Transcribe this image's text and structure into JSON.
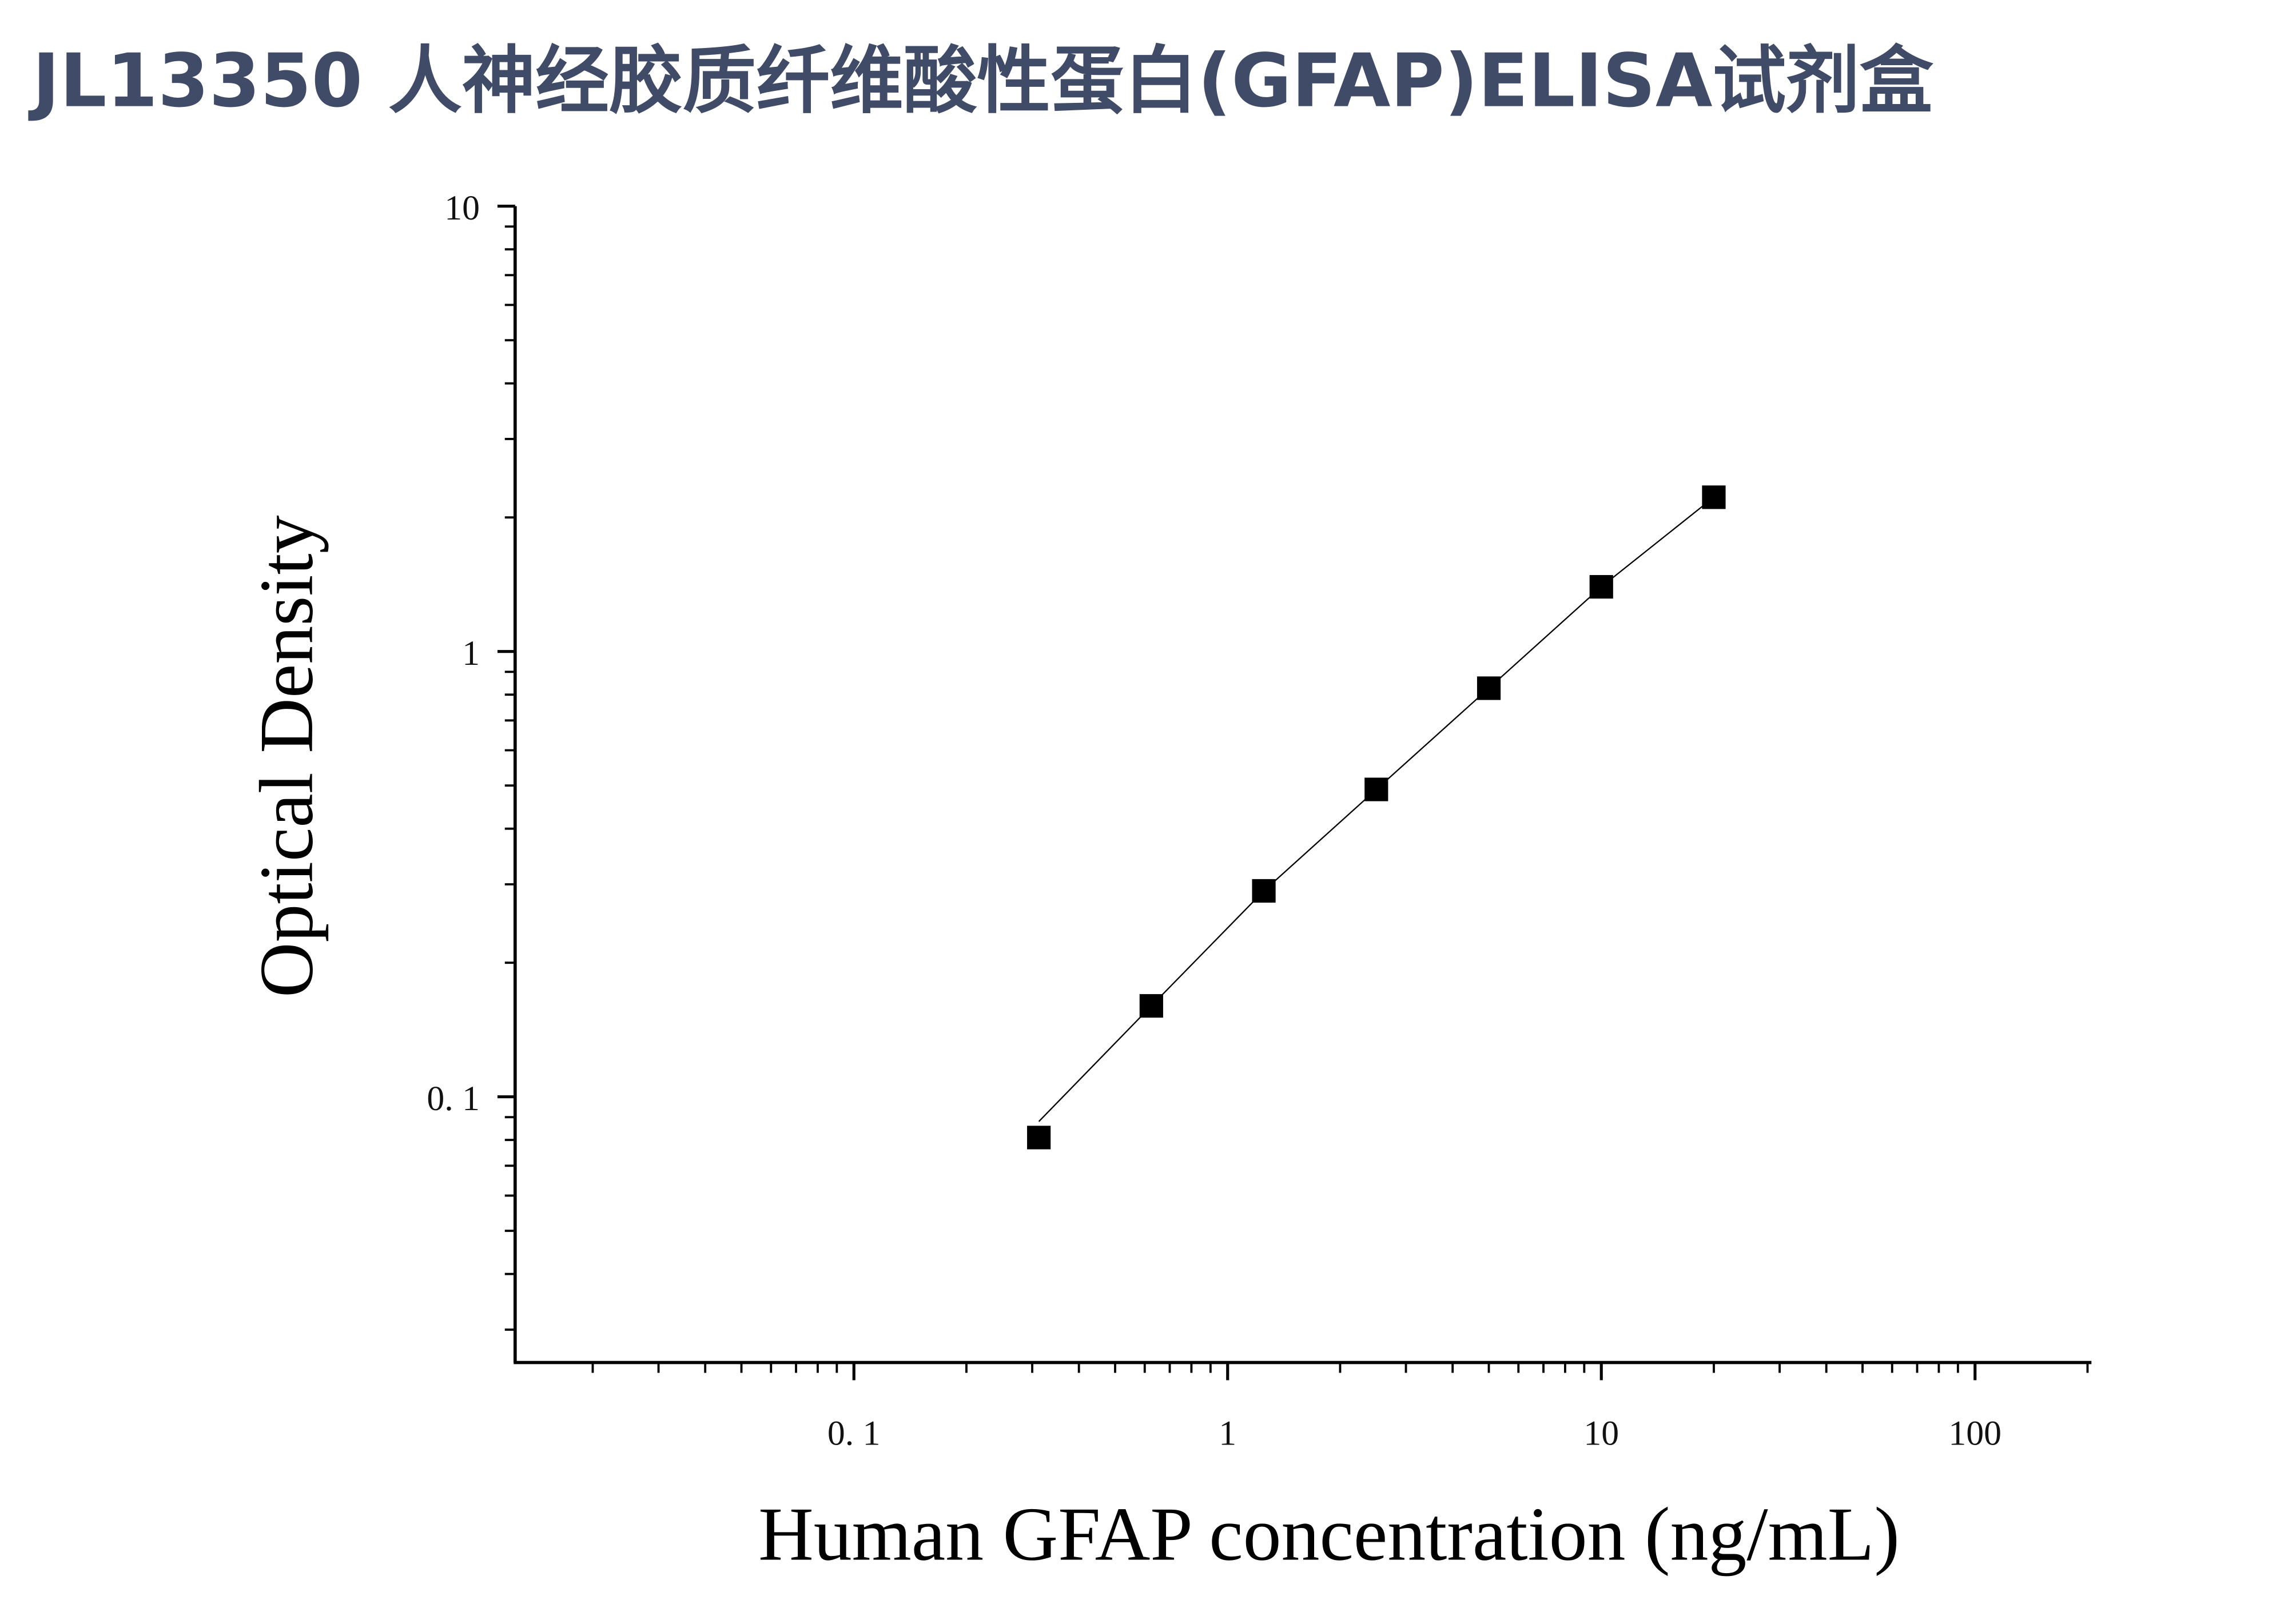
{
  "title": "JL13350 人神经胶质纤维酸性蛋白(GFAP)ELISA试剂盒",
  "colors": {
    "title": "#3f4b67",
    "marks": "#000000"
  },
  "chart_data": {
    "type": "scatter",
    "title": "JL13350 人神经胶质纤维酸性蛋白(GFAP)ELISA试剂盒",
    "xlabel": "Human GFAP concentration (ng/mL)",
    "ylabel": "Optical Density",
    "xscale": "log",
    "yscale": "log",
    "xlim": [
      0.0124,
      203
    ],
    "ylim": [
      0.0255,
      10
    ],
    "xticks": [
      0.1,
      1,
      10,
      100
    ],
    "xtick_labels": [
      "0. 1",
      "1",
      "10",
      "100"
    ],
    "yticks": [
      0.1,
      1,
      10
    ],
    "ytick_labels": [
      "0. 1",
      "1",
      "10"
    ],
    "grid": false,
    "series": [
      {
        "name": "Standard",
        "marker": "square",
        "x": [
          0.3125,
          0.625,
          1.25,
          2.5,
          5,
          10,
          20
        ],
        "y": [
          0.081,
          0.16,
          0.29,
          0.49,
          0.827,
          1.397,
          2.22
        ]
      },
      {
        "name": "Fit",
        "marker": "none",
        "x": [
          0.3125,
          0.625,
          1.25,
          2.5,
          5,
          10,
          20
        ],
        "y": [
          0.088,
          0.16,
          0.29,
          0.49,
          0.827,
          1.397,
          2.22
        ]
      }
    ]
  }
}
